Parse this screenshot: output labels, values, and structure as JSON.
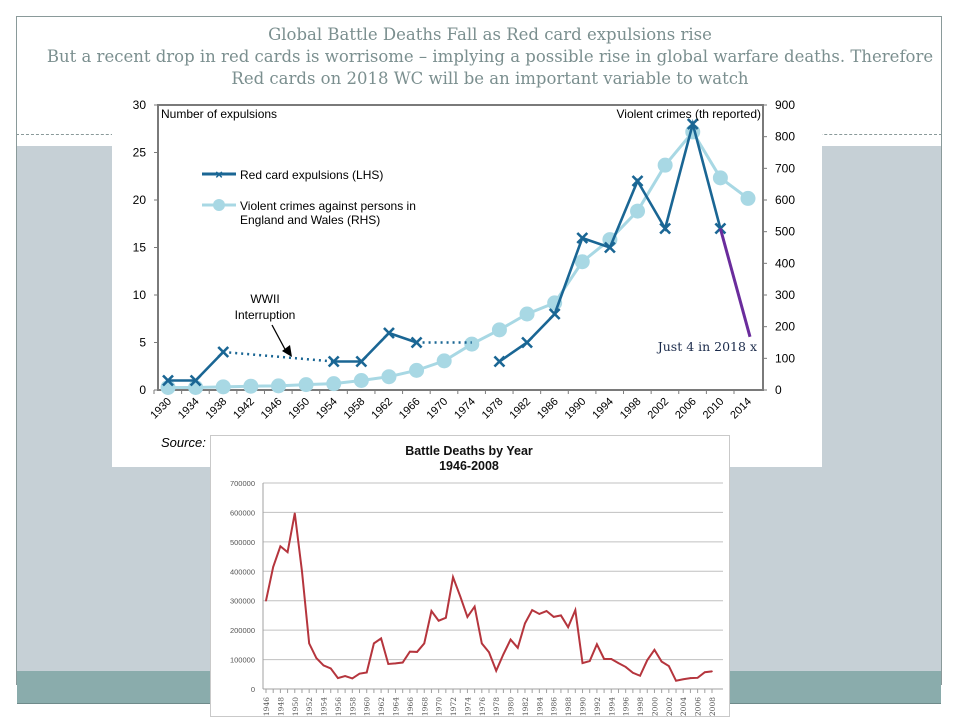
{
  "slide": {
    "title_lines": [
      "Global Battle Deaths Fall as Red card expulsions rise",
      "But a recent drop in red cards is worrisome – implying a possible rise in global warfare deaths. Therefore",
      "Red cards on 2018  WC will be an important variable to watch"
    ],
    "colors": {
      "frame": "#8a9a9a",
      "band": "#c6d0d6",
      "footer": "#8aacac",
      "title": "#7b8f8f"
    }
  },
  "chart_data": [
    {
      "type": "line",
      "title": "",
      "ylabel": "Number of expulsions",
      "y2label": "Violent crimes (th reported)",
      "ylim": [
        0,
        30
      ],
      "y2lim": [
        0,
        900
      ],
      "yticks": [
        "0",
        "5",
        "10",
        "15",
        "20",
        "25",
        "30"
      ],
      "y2ticks": [
        "0",
        "100",
        "200",
        "300",
        "400",
        "500",
        "600",
        "700",
        "800",
        "900"
      ],
      "categories": [
        "1930",
        "1934",
        "1938",
        "1942",
        "1946",
        "1950",
        "1954",
        "1958",
        "1962",
        "1966",
        "1970",
        "1974",
        "1978",
        "1982",
        "1986",
        "1990",
        "1994",
        "1998",
        "2002",
        "2006",
        "2010",
        "2014"
      ],
      "source_label": "Source:",
      "legend_position": "upper-left",
      "series": [
        {
          "name": "Red card expulsions (LHS)",
          "axis": "left",
          "color": "#1a6694",
          "marker": "x",
          "values": [
            1,
            1,
            4,
            null,
            null,
            null,
            3,
            3,
            6,
            5,
            null,
            null,
            3,
            5,
            8,
            16,
            15,
            22,
            17,
            28,
            17,
            null
          ]
        },
        {
          "name": "Violent crimes against persons in England and Wales (RHS)",
          "axis": "right",
          "color": "#a8d8e4",
          "marker": "circle",
          "values": [
            8,
            8,
            10,
            12,
            13,
            17,
            20,
            30,
            42,
            62,
            92,
            145,
            190,
            240,
            275,
            405,
            475,
            565,
            710,
            815,
            670,
            605
          ]
        }
      ],
      "interruptions": [
        {
          "from": [
            "1938",
            4
          ],
          "to": [
            "1954",
            3
          ]
        },
        {
          "from": [
            "1966",
            5
          ],
          "to": [
            "1974",
            5
          ]
        }
      ],
      "projection": {
        "from": [
          "2010",
          17
        ],
        "to_value": 5.6,
        "color": "#6a2c9c"
      },
      "annotations": [
        {
          "text": "WWII",
          "text2": "Interruption"
        },
        {
          "text": "Just 4 in 2018 x"
        }
      ]
    },
    {
      "type": "line",
      "title": "Battle Deaths by Year",
      "subtitle": "1946-2008",
      "xlabel": "",
      "ylabel": "",
      "ylim": [
        0,
        700000
      ],
      "yticks": [
        "0",
        "100000",
        "200000",
        "300000",
        "400000",
        "500000",
        "600000",
        "700000"
      ],
      "grid": true,
      "color": "#b5353d",
      "x": [
        1946,
        1947,
        1948,
        1949,
        1950,
        1951,
        1952,
        1953,
        1954,
        1955,
        1956,
        1957,
        1958,
        1959,
        1960,
        1961,
        1962,
        1963,
        1964,
        1965,
        1966,
        1967,
        1968,
        1969,
        1970,
        1971,
        1972,
        1973,
        1974,
        1975,
        1976,
        1977,
        1978,
        1979,
        1980,
        1981,
        1982,
        1983,
        1984,
        1985,
        1986,
        1987,
        1988,
        1989,
        1990,
        1991,
        1992,
        1993,
        1994,
        1995,
        1996,
        1997,
        1998,
        1999,
        2000,
        2001,
        2002,
        2003,
        2004,
        2005,
        2006,
        2007,
        2008
      ],
      "xticklabels": [
        "1946",
        "1948",
        "1950",
        "1952",
        "1954",
        "1956",
        "1958",
        "1960",
        "1962",
        "1964",
        "1966",
        "1968",
        "1970",
        "1972",
        "1974",
        "1976",
        "1978",
        "1980",
        "1982",
        "1984",
        "1986",
        "1988",
        "1990",
        "1992",
        "1994",
        "1996",
        "1998",
        "2000",
        "2002",
        "2004",
        "2006",
        "2008"
      ],
      "values": [
        300000,
        415000,
        485000,
        465000,
        597000,
        400000,
        155000,
        105000,
        80000,
        70000,
        37000,
        44000,
        36000,
        52000,
        56000,
        155000,
        172000,
        85000,
        87000,
        90000,
        127000,
        126000,
        155000,
        265000,
        232000,
        242000,
        380000,
        315000,
        245000,
        280000,
        155000,
        125000,
        62000,
        118000,
        168000,
        140000,
        223000,
        268000,
        255000,
        265000,
        245000,
        250000,
        210000,
        268000,
        88000,
        95000,
        152000,
        102000,
        102000,
        88000,
        75000,
        55000,
        45000,
        98000,
        133000,
        93000,
        78000,
        28000,
        33000,
        37000,
        38000,
        57000,
        60000
      ]
    }
  ]
}
